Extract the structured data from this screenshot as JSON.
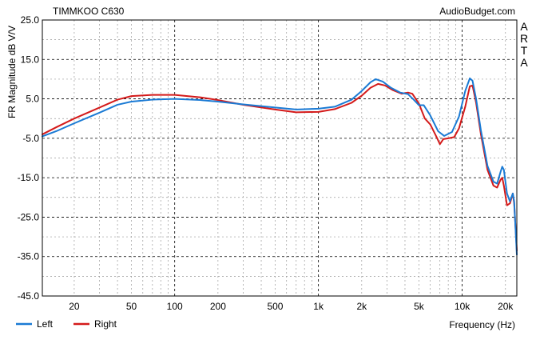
{
  "chart_data": {
    "type": "line",
    "title": "TIMMKOO C630",
    "watermark": "AudioBudget.com",
    "side_label": [
      "A",
      "R",
      "T",
      "A"
    ],
    "xlabel": "Frequency (Hz)",
    "ylabel": "FR Magnitude dB V/V",
    "x_scale": "log",
    "xlim": [
      12,
      24000
    ],
    "ylim": [
      -45,
      25
    ],
    "grid": true,
    "y_ticks": [
      25.0,
      15.0,
      5.0,
      -5.0,
      -15.0,
      -25.0,
      -35.0,
      -45.0
    ],
    "y_tick_labels": [
      "25.0",
      "15.0",
      "5.0",
      "-5.0",
      "-15.0",
      "-25.0",
      "-35.0",
      "-45.0"
    ],
    "x_ticks": [
      20,
      50,
      100,
      200,
      500,
      1000,
      2000,
      5000,
      10000,
      20000
    ],
    "x_tick_labels": [
      "20",
      "50",
      "100",
      "200",
      "500",
      "1k",
      "2k",
      "5k",
      "10k",
      "20k"
    ],
    "legend_position": "bottom-left",
    "series": [
      {
        "name": "Left",
        "color": "#1a7ad4",
        "points": [
          [
            12,
            -4.5
          ],
          [
            15,
            -3.2
          ],
          [
            20,
            -1.2
          ],
          [
            30,
            1.5
          ],
          [
            40,
            3.5
          ],
          [
            50,
            4.3
          ],
          [
            70,
            4.8
          ],
          [
            100,
            5.0
          ],
          [
            150,
            4.7
          ],
          [
            200,
            4.3
          ],
          [
            300,
            3.6
          ],
          [
            500,
            2.8
          ],
          [
            700,
            2.3
          ],
          [
            1000,
            2.5
          ],
          [
            1300,
            3.0
          ],
          [
            1700,
            4.8
          ],
          [
            2000,
            7.0
          ],
          [
            2300,
            9.2
          ],
          [
            2500,
            10.0
          ],
          [
            2800,
            9.4
          ],
          [
            3200,
            7.8
          ],
          [
            3700,
            6.6
          ],
          [
            4200,
            6.2
          ],
          [
            4600,
            4.8
          ],
          [
            5000,
            3.4
          ],
          [
            5400,
            3.4
          ],
          [
            6000,
            0.8
          ],
          [
            6800,
            -3.2
          ],
          [
            7500,
            -4.4
          ],
          [
            8500,
            -3.4
          ],
          [
            9500,
            0.5
          ],
          [
            10500,
            7.0
          ],
          [
            11300,
            10.2
          ],
          [
            11800,
            9.6
          ],
          [
            12500,
            5.0
          ],
          [
            13500,
            -3.0
          ],
          [
            15000,
            -12.0
          ],
          [
            16500,
            -16.0
          ],
          [
            17500,
            -16.5
          ],
          [
            18500,
            -13.5
          ],
          [
            19000,
            -12.2
          ],
          [
            19500,
            -13.0
          ],
          [
            20500,
            -19.0
          ],
          [
            21500,
            -21.0
          ],
          [
            22500,
            -19.0
          ],
          [
            23000,
            -21.0
          ],
          [
            24000,
            -34.5
          ]
        ]
      },
      {
        "name": "Right",
        "color": "#d41a1a",
        "points": [
          [
            12,
            -4.0
          ],
          [
            15,
            -2.2
          ],
          [
            20,
            0.0
          ],
          [
            30,
            2.8
          ],
          [
            40,
            4.8
          ],
          [
            50,
            5.7
          ],
          [
            70,
            6.0
          ],
          [
            100,
            6.0
          ],
          [
            150,
            5.4
          ],
          [
            200,
            4.7
          ],
          [
            300,
            3.5
          ],
          [
            500,
            2.3
          ],
          [
            700,
            1.6
          ],
          [
            1000,
            1.7
          ],
          [
            1300,
            2.4
          ],
          [
            1700,
            4.0
          ],
          [
            2000,
            5.8
          ],
          [
            2300,
            7.8
          ],
          [
            2600,
            8.8
          ],
          [
            2900,
            8.4
          ],
          [
            3300,
            7.2
          ],
          [
            3800,
            6.3
          ],
          [
            4200,
            6.6
          ],
          [
            4500,
            6.3
          ],
          [
            5000,
            3.8
          ],
          [
            5500,
            0.0
          ],
          [
            6000,
            -1.5
          ],
          [
            6600,
            -4.5
          ],
          [
            7000,
            -6.5
          ],
          [
            7400,
            -5.2
          ],
          [
            8000,
            -5.0
          ],
          [
            8800,
            -4.7
          ],
          [
            9500,
            -2.5
          ],
          [
            10500,
            3.0
          ],
          [
            11300,
            8.2
          ],
          [
            11800,
            8.4
          ],
          [
            12500,
            4.0
          ],
          [
            13500,
            -4.0
          ],
          [
            15000,
            -13.0
          ],
          [
            16500,
            -17.0
          ],
          [
            17500,
            -17.5
          ],
          [
            18500,
            -15.5
          ],
          [
            19000,
            -15.0
          ],
          [
            19500,
            -17.0
          ],
          [
            20500,
            -22.0
          ],
          [
            21500,
            -21.5
          ],
          [
            22500,
            -19.0
          ],
          [
            23000,
            -21.5
          ],
          [
            24000,
            -33.5
          ]
        ]
      }
    ]
  }
}
